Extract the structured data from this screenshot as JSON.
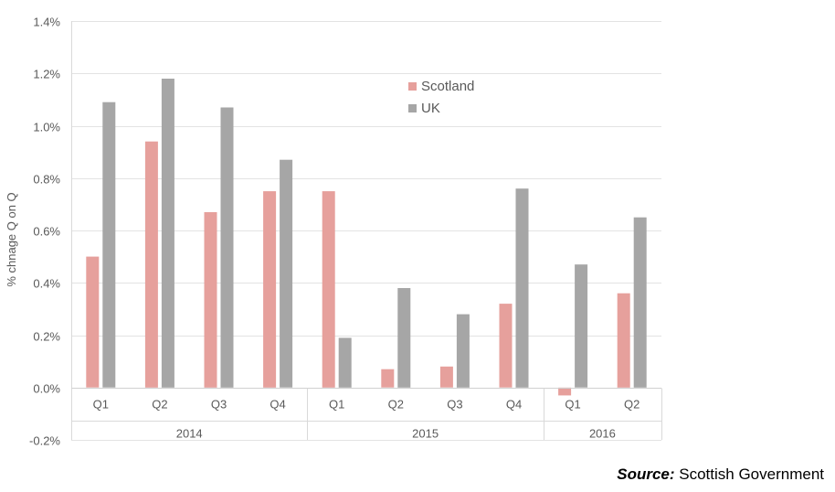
{
  "chart_data": {
    "type": "bar",
    "ylabel": "% chnage Q on Q",
    "ylim": [
      -0.2,
      1.4
    ],
    "yticks": [
      -0.2,
      0.0,
      0.2,
      0.4,
      0.6,
      0.8,
      1.0,
      1.2,
      1.4
    ],
    "ytick_labels": [
      "-0.2%",
      "0.0%",
      "0.2%",
      "0.4%",
      "0.6%",
      "0.8%",
      "1.0%",
      "1.2%",
      "1.4%"
    ],
    "categories": [
      "Q1",
      "Q2",
      "Q3",
      "Q4",
      "Q1",
      "Q2",
      "Q3",
      "Q4",
      "Q1",
      "Q2"
    ],
    "groups": [
      {
        "label": "2014",
        "count": 4
      },
      {
        "label": "2015",
        "count": 4
      },
      {
        "label": "2016",
        "count": 2
      }
    ],
    "series": [
      {
        "name": "Scotland",
        "color": "#e6a09c",
        "values": [
          0.5,
          0.94,
          0.67,
          0.75,
          0.75,
          0.07,
          0.08,
          0.32,
          -0.03,
          0.36
        ]
      },
      {
        "name": "UK",
        "color": "#a6a6a6",
        "values": [
          1.09,
          1.18,
          1.07,
          0.87,
          0.19,
          0.38,
          0.28,
          0.76,
          0.47,
          0.65
        ]
      }
    ],
    "grid": true,
    "legend_position": "top-center"
  },
  "source": {
    "label": "Source:",
    "text": " Scottish Government"
  }
}
